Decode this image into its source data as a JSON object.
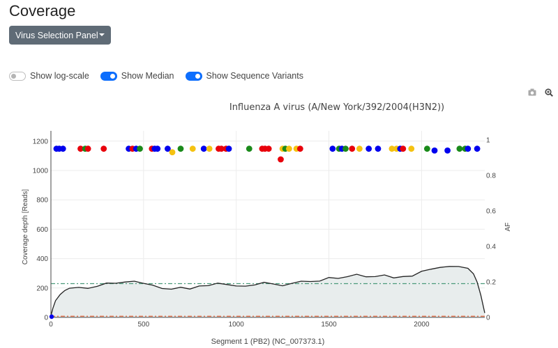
{
  "page": {
    "title": "Coverage"
  },
  "panel": {
    "dropdown_label": "Virus Selection Panel"
  },
  "toggles": [
    {
      "label": "Show log-scale",
      "on": false
    },
    {
      "label": "Show Median",
      "on": true
    },
    {
      "label": "Show Sequence Variants",
      "on": true
    }
  ],
  "toolbar": {
    "camera_icon": "camera-icon",
    "zoom_icon": "zoom-icon"
  },
  "colors": {
    "coverage_line": "#222222",
    "coverage_fill": "#e8eded",
    "median_line": "#4a9a7a",
    "threshold_line": "#e2582a",
    "variant_colors": [
      "#0000ee",
      "#e8000b",
      "#1a8a1a",
      "#f5c211"
    ]
  },
  "chart_data": {
    "type": "line",
    "title": "Influenza A virus (A/New York/392/2004(H3N2))",
    "xlabel": "Segment 1 (PB2) (NC_007373.1)",
    "ylabel": "Coverage depth [Reads]",
    "y2label": "AF",
    "xlim": [
      0,
      2341
    ],
    "ylim": [
      0,
      1270
    ],
    "y2lim": [
      0,
      1.0507
    ],
    "x_ticks": [
      0,
      500,
      1000,
      1500,
      2000
    ],
    "y_ticks": [
      0,
      200,
      400,
      600,
      800,
      1000,
      1200
    ],
    "y2_ticks": [
      0,
      0.2,
      0.4,
      0.6,
      0.8,
      1
    ],
    "y2_tick_labels": [
      "0",
      "0.2",
      "0.4",
      "0.6",
      "0.8",
      "1"
    ],
    "grid": true,
    "median": 230,
    "threshold": 8,
    "coverage": {
      "x": [
        0,
        10,
        25,
        50,
        75,
        100,
        150,
        200,
        250,
        300,
        350,
        400,
        450,
        500,
        550,
        600,
        650,
        700,
        750,
        800,
        850,
        900,
        950,
        1000,
        1050,
        1100,
        1150,
        1200,
        1250,
        1300,
        1350,
        1400,
        1450,
        1500,
        1550,
        1600,
        1650,
        1700,
        1750,
        1800,
        1850,
        1900,
        1950,
        2000,
        2050,
        2100,
        2150,
        2200,
        2250,
        2280,
        2300,
        2320,
        2341
      ],
      "y": [
        10,
        60,
        110,
        160,
        180,
        200,
        205,
        195,
        215,
        230,
        235,
        240,
        245,
        235,
        215,
        200,
        190,
        205,
        195,
        210,
        220,
        230,
        225,
        215,
        210,
        225,
        235,
        230,
        215,
        230,
        250,
        240,
        250,
        270,
        265,
        280,
        290,
        280,
        275,
        290,
        270,
        275,
        285,
        310,
        330,
        340,
        345,
        350,
        330,
        300,
        240,
        150,
        30
      ]
    },
    "variants": {
      "x": [
        30,
        45,
        65,
        160,
        185,
        200,
        285,
        420,
        440,
        460,
        480,
        545,
        560,
        575,
        630,
        655,
        700,
        765,
        825,
        855,
        905,
        920,
        945,
        960,
        1070,
        1140,
        1155,
        1175,
        1240,
        1250,
        1265,
        1285,
        1325,
        1345,
        1520,
        1555,
        1570,
        1590,
        1625,
        1665,
        1715,
        1765,
        1840,
        1865,
        1885,
        1900,
        1945,
        2030,
        2070,
        2140,
        2205,
        2235,
        2250,
        2300
      ],
      "af": [
        0.95,
        0.95,
        0.95,
        0.95,
        0.95,
        0.95,
        0.95,
        0.95,
        0.95,
        0.95,
        0.95,
        0.95,
        0.95,
        0.95,
        0.95,
        0.93,
        0.95,
        0.95,
        0.95,
        0.95,
        0.95,
        0.95,
        0.95,
        0.95,
        0.95,
        0.95,
        0.95,
        0.95,
        0.89,
        0.95,
        0.95,
        0.95,
        0.95,
        0.95,
        0.95,
        0.95,
        0.95,
        0.95,
        0.95,
        0.95,
        0.95,
        0.95,
        0.95,
        0.95,
        0.95,
        0.95,
        0.95,
        0.95,
        0.94,
        0.94,
        0.95,
        0.95,
        0.95,
        0.95
      ],
      "color_index": [
        0,
        0,
        0,
        1,
        2,
        1,
        1,
        0,
        1,
        0,
        2,
        1,
        0,
        0,
        0,
        3,
        2,
        3,
        0,
        3,
        1,
        1,
        1,
        0,
        2,
        1,
        1,
        1,
        1,
        3,
        2,
        3,
        3,
        1,
        0,
        2,
        0,
        2,
        1,
        3,
        0,
        0,
        3,
        3,
        0,
        1,
        3,
        2,
        0,
        0,
        2,
        2,
        0,
        0
      ]
    }
  }
}
